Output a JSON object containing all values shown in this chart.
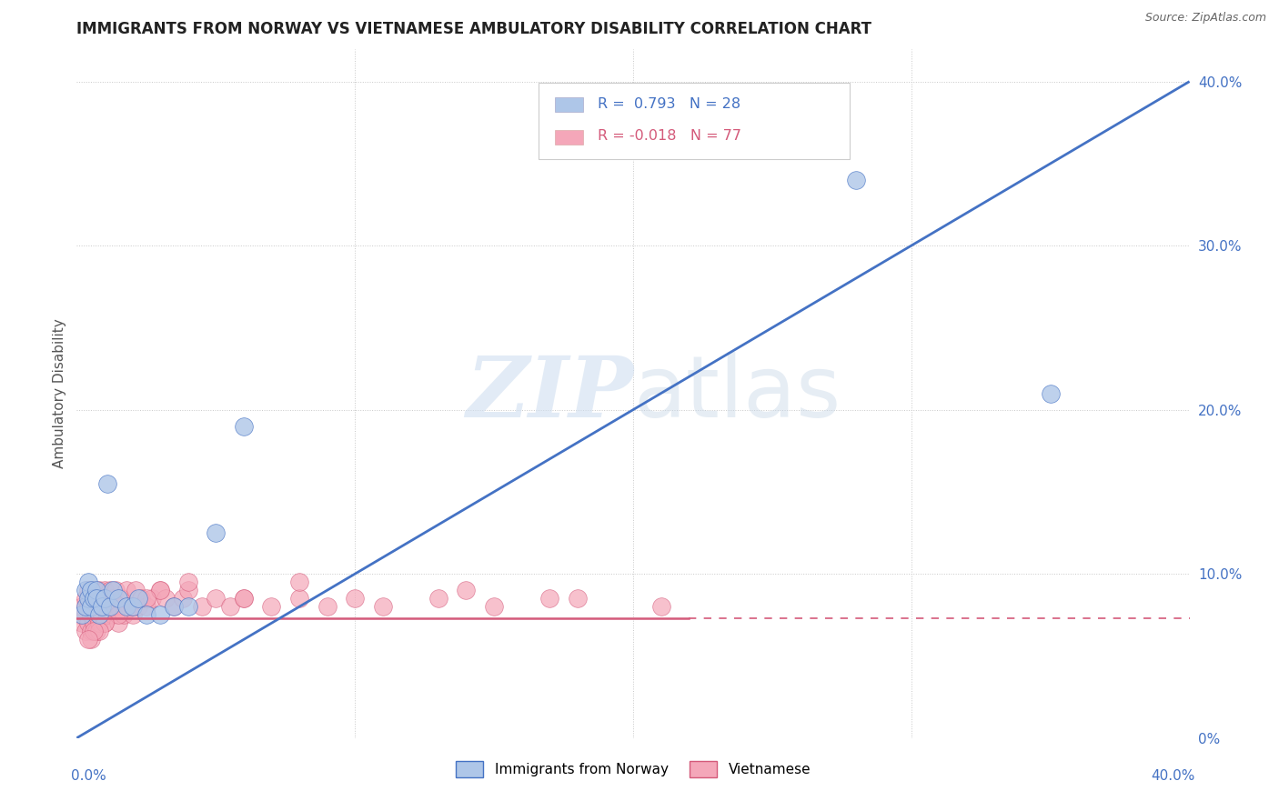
{
  "title": "IMMIGRANTS FROM NORWAY VS VIETNAMESE AMBULATORY DISABILITY CORRELATION CHART",
  "source": "Source: ZipAtlas.com",
  "ylabel": "Ambulatory Disability",
  "legend1_r": "R =  0.793",
  "legend1_n": "N = 28",
  "legend2_r": "R = -0.018",
  "legend2_n": "N = 77",
  "legend_label1": "Immigrants from Norway",
  "legend_label2": "Vietnamese",
  "norway_color": "#aec6e8",
  "norwegian_line_color": "#4472c4",
  "vietnamese_color": "#f4a7b9",
  "vietnamese_line_color": "#d45a7a",
  "xlim": [
    0.0,
    0.4
  ],
  "ylim": [
    0.0,
    0.42
  ],
  "norway_x": [
    0.002,
    0.003,
    0.003,
    0.004,
    0.004,
    0.005,
    0.005,
    0.006,
    0.007,
    0.007,
    0.008,
    0.009,
    0.01,
    0.011,
    0.012,
    0.013,
    0.015,
    0.018,
    0.02,
    0.022,
    0.025,
    0.03,
    0.035,
    0.04,
    0.05,
    0.06,
    0.28,
    0.35
  ],
  "norway_y": [
    0.075,
    0.08,
    0.09,
    0.085,
    0.095,
    0.08,
    0.09,
    0.085,
    0.09,
    0.085,
    0.075,
    0.08,
    0.085,
    0.155,
    0.08,
    0.09,
    0.085,
    0.08,
    0.08,
    0.085,
    0.075,
    0.075,
    0.08,
    0.08,
    0.125,
    0.19,
    0.34,
    0.21
  ],
  "viet_x": [
    0.001,
    0.002,
    0.002,
    0.003,
    0.003,
    0.003,
    0.004,
    0.004,
    0.004,
    0.005,
    0.005,
    0.005,
    0.005,
    0.006,
    0.006,
    0.006,
    0.007,
    0.007,
    0.007,
    0.008,
    0.008,
    0.008,
    0.009,
    0.009,
    0.01,
    0.01,
    0.01,
    0.011,
    0.011,
    0.012,
    0.012,
    0.013,
    0.013,
    0.014,
    0.015,
    0.015,
    0.016,
    0.017,
    0.018,
    0.019,
    0.02,
    0.021,
    0.022,
    0.023,
    0.025,
    0.027,
    0.03,
    0.032,
    0.035,
    0.038,
    0.04,
    0.045,
    0.05,
    0.055,
    0.06,
    0.07,
    0.08,
    0.09,
    0.1,
    0.11,
    0.13,
    0.15,
    0.18,
    0.21,
    0.14,
    0.17,
    0.08,
    0.06,
    0.04,
    0.03,
    0.025,
    0.02,
    0.015,
    0.01,
    0.008,
    0.006,
    0.004
  ],
  "viet_y": [
    0.075,
    0.08,
    0.07,
    0.085,
    0.075,
    0.065,
    0.09,
    0.08,
    0.07,
    0.085,
    0.075,
    0.065,
    0.06,
    0.09,
    0.08,
    0.07,
    0.085,
    0.075,
    0.065,
    0.09,
    0.08,
    0.07,
    0.085,
    0.075,
    0.09,
    0.08,
    0.07,
    0.085,
    0.075,
    0.09,
    0.08,
    0.085,
    0.075,
    0.09,
    0.08,
    0.07,
    0.085,
    0.075,
    0.09,
    0.08,
    0.075,
    0.09,
    0.08,
    0.085,
    0.08,
    0.085,
    0.09,
    0.085,
    0.08,
    0.085,
    0.09,
    0.08,
    0.085,
    0.08,
    0.085,
    0.08,
    0.085,
    0.08,
    0.085,
    0.08,
    0.085,
    0.08,
    0.085,
    0.08,
    0.09,
    0.085,
    0.095,
    0.085,
    0.095,
    0.09,
    0.085,
    0.08,
    0.075,
    0.07,
    0.065,
    0.065,
    0.06
  ]
}
